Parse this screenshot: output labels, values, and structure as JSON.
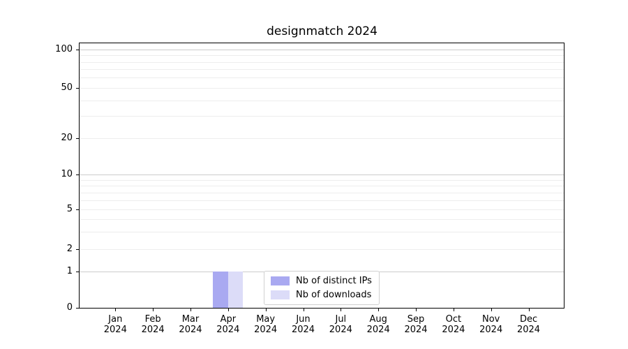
{
  "chart_data": {
    "type": "bar",
    "title": "designmatch 2024",
    "categories": [
      "Jan 2024",
      "Feb 2024",
      "Mar 2024",
      "Apr 2024",
      "May 2024",
      "Jun 2024",
      "Jul 2024",
      "Aug 2024",
      "Sep 2024",
      "Oct 2024",
      "Nov 2024",
      "Dec 2024"
    ],
    "series": [
      {
        "name": "Nb of distinct IPs",
        "color": "#a9a9f1",
        "values": [
          0,
          0,
          0,
          1,
          0,
          0,
          0,
          0,
          0,
          0,
          0,
          0
        ]
      },
      {
        "name": "Nb of downloads",
        "color": "#dcdcf8",
        "values": [
          0,
          0,
          0,
          1,
          0,
          0,
          0,
          0,
          0,
          0,
          0,
          0
        ]
      }
    ],
    "xlabel": "",
    "ylabel": "",
    "y_axis": {
      "scale": "log-like with zero baseline",
      "tick_labels": [
        "0",
        "1",
        "2",
        "5",
        "10",
        "20",
        "50",
        "100"
      ],
      "major_gridline_values": [
        1,
        10,
        100
      ],
      "minor_gridline_values": [
        2,
        3,
        4,
        5,
        6,
        7,
        8,
        9,
        20,
        30,
        40,
        50,
        60,
        70,
        80,
        90
      ],
      "range": [
        0,
        115
      ]
    },
    "grid": "horizontal only",
    "legend_position": "lower center inside plot"
  }
}
